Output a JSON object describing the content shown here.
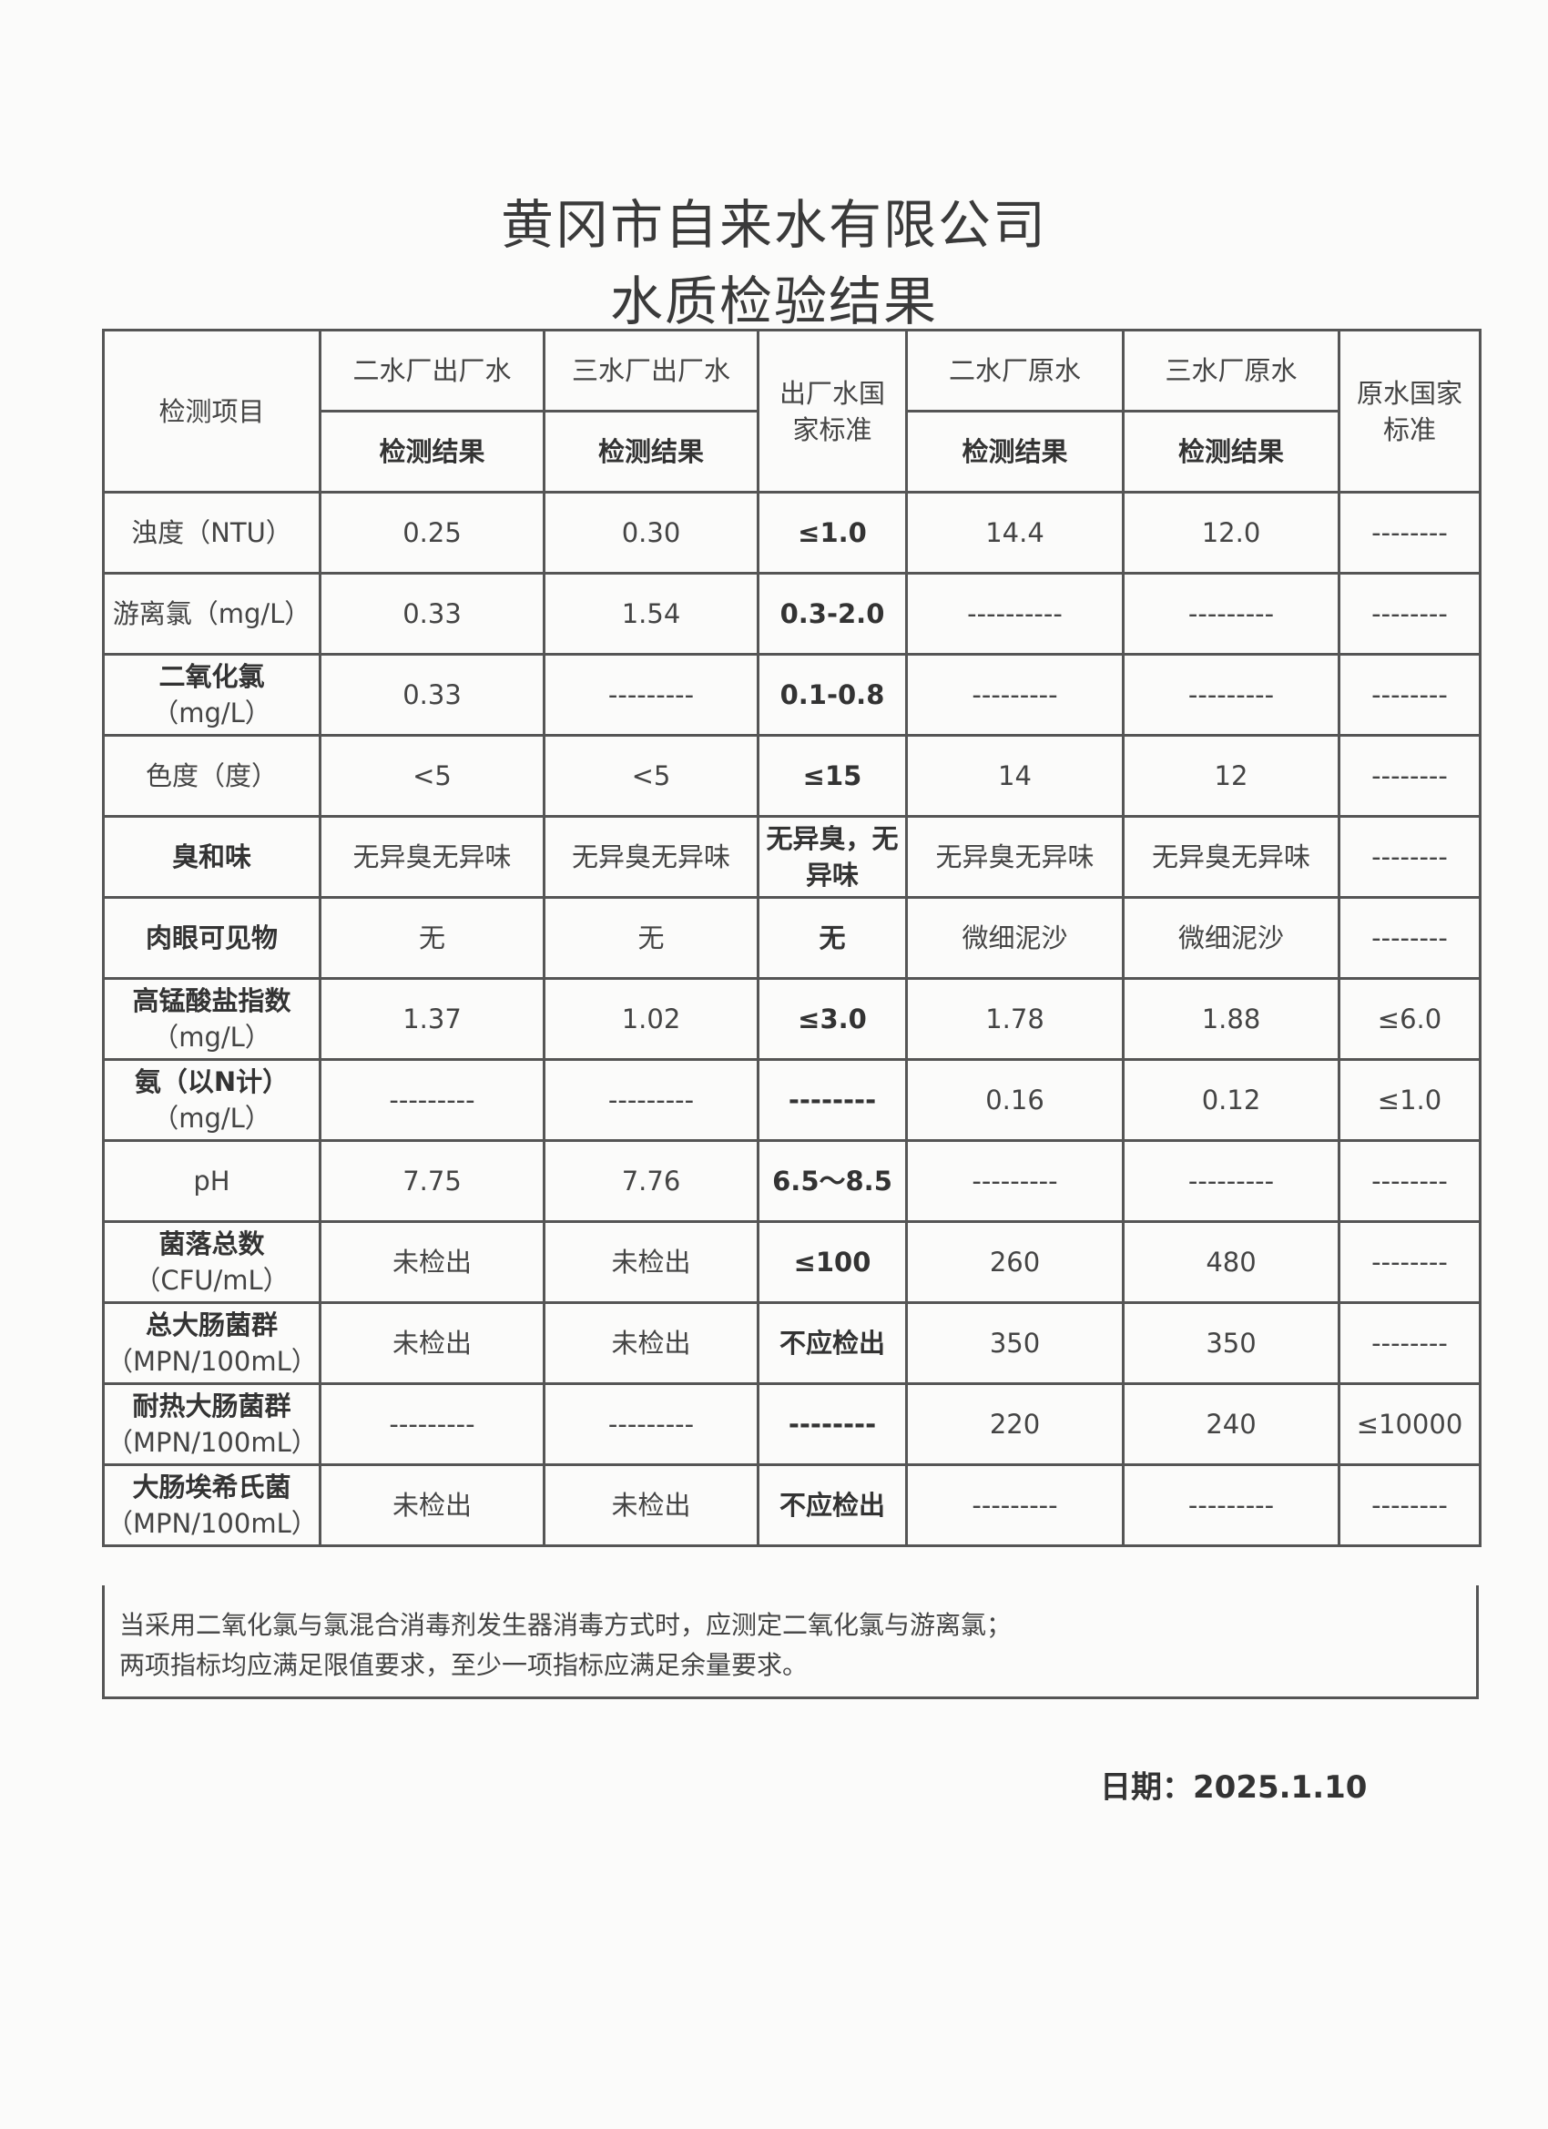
{
  "title": {
    "line1": "黄冈市自来水有限公司",
    "line2": "水质检验结果"
  },
  "table": {
    "headers": {
      "item": "检测项目",
      "col1": "二水厂出厂水",
      "col2": "三水厂出厂水",
      "std_out": "出厂水国家标准",
      "col3": "二水厂原水",
      "col4": "三水厂原水",
      "std_raw": "原水国家标准",
      "sub": "检测结果"
    },
    "rows": [
      {
        "item": [
          "浊度（NTU）"
        ],
        "c1": "0.25",
        "c2": "0.30",
        "std": "≤1.0",
        "c3": "14.4",
        "c4": "12.0",
        "std_raw": "--------"
      },
      {
        "item": [
          "游离氯（mg/L）"
        ],
        "c1": "0.33",
        "c2": "1.54",
        "std": "0.3-2.0",
        "c3": "----------",
        "c4": "---------",
        "std_raw": "--------"
      },
      {
        "item": [
          "二氧化氯",
          "（mg/L）"
        ],
        "c1": "0.33",
        "c2": "---------",
        "std": "0.1-0.8",
        "c3": "---------",
        "c4": "---------",
        "std_raw": "--------"
      },
      {
        "item": [
          "色度（度）"
        ],
        "c1": "<5",
        "c2": "<5",
        "std": "≤15",
        "c3": "14",
        "c4": "12",
        "std_raw": "--------"
      },
      {
        "item": [
          "臭和味"
        ],
        "c1": "无异臭无异味",
        "c2": "无异臭无异味",
        "std": "无异臭，无异味",
        "c3": "无异臭无异味",
        "c4": "无异臭无异味",
        "std_raw": "--------"
      },
      {
        "item": [
          "肉眼可见物"
        ],
        "c1": "无",
        "c2": "无",
        "std": "无",
        "c3": "微细泥沙",
        "c4": "微细泥沙",
        "std_raw": "--------"
      },
      {
        "item": [
          "高锰酸盐指数",
          "（mg/L）"
        ],
        "c1": "1.37",
        "c2": "1.02",
        "std": "≤3.0",
        "c3": "1.78",
        "c4": "1.88",
        "std_raw": "≤6.0"
      },
      {
        "item": [
          "氨（以N计）",
          "（mg/L）"
        ],
        "c1": "---------",
        "c2": "---------",
        "std": "--------",
        "c3": "0.16",
        "c4": "0.12",
        "std_raw": "≤1.0"
      },
      {
        "item": [
          "pH"
        ],
        "c1": "7.75",
        "c2": "7.76",
        "std": "6.5～8.5",
        "c3": "---------",
        "c4": "---------",
        "std_raw": "--------"
      },
      {
        "item": [
          "菌落总数",
          "（CFU/mL）"
        ],
        "c1": "未检出",
        "c2": "未检出",
        "std": "≤100",
        "c3": "260",
        "c4": "480",
        "std_raw": "--------"
      },
      {
        "item": [
          "总大肠菌群",
          "（MPN/100mL）"
        ],
        "c1": "未检出",
        "c2": "未检出",
        "std": "不应检出",
        "c3": "350",
        "c4": "350",
        "std_raw": "--------"
      },
      {
        "item": [
          "耐热大肠菌群",
          "（MPN/100mL）"
        ],
        "c1": "---------",
        "c2": "---------",
        "std": "--------",
        "c3": "220",
        "c4": "240",
        "std_raw": "≤10000"
      },
      {
        "item": [
          "大肠埃希氏菌",
          "（MPN/100mL）"
        ],
        "c1": "未检出",
        "c2": "未检出",
        "std": "不应检出",
        "c3": "---------",
        "c4": "---------",
        "std_raw": "--------"
      }
    ],
    "note": [
      "当采用二氧化氯与氯混合消毒剂发生器消毒方式时，应测定二氧化氯与游离氯；",
      "两项指标均应满足限值要求，至少一项指标应满足余量要求。"
    ]
  },
  "date": "日期：2025.1.10"
}
